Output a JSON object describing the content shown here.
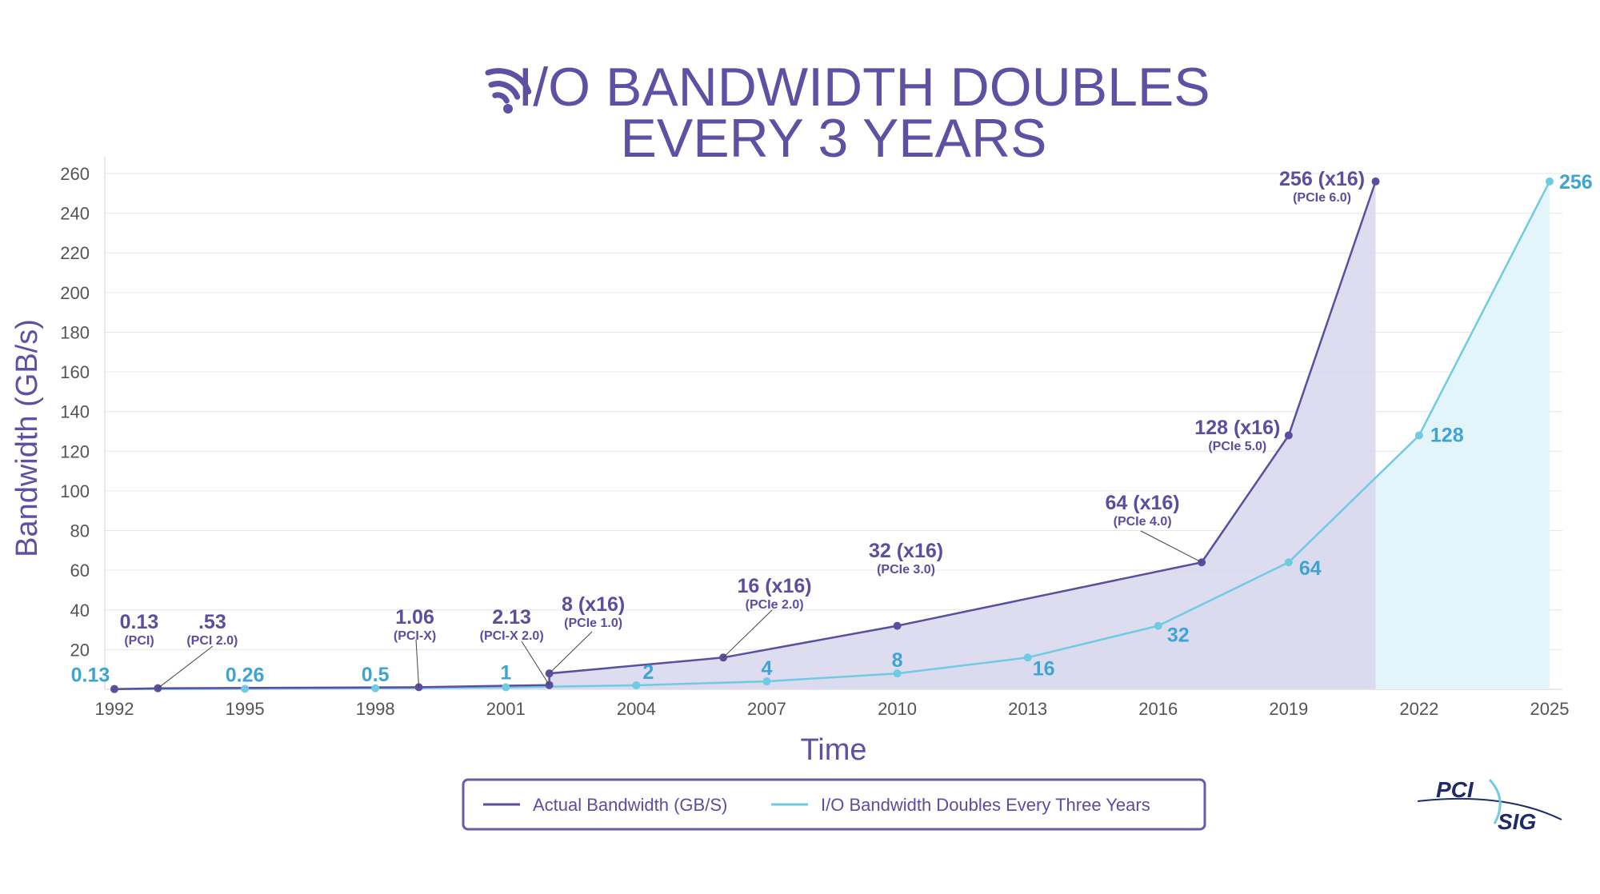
{
  "title": {
    "line1": "I/O BANDWIDTH DOUBLES",
    "line2": "EVERY 3 YEARS"
  },
  "title_icon": "wifi-signal-icon",
  "logo": {
    "line1": "PCI",
    "line2": "SIG"
  },
  "colors": {
    "actual": "#5a4e9e",
    "projected": "#6fcbe2",
    "projected_label": "#3fa3d4",
    "title": "#5c51a3"
  },
  "chart_data": {
    "type": "line",
    "title": "I/O BANDWIDTH DOUBLES EVERY 3 YEARS",
    "xlabel": "Time",
    "ylabel": "Bandwidth (GB/s)",
    "xlim": [
      1992,
      2025
    ],
    "ylim": [
      0,
      260
    ],
    "x_ticks": [
      1992,
      1995,
      1998,
      2001,
      2004,
      2007,
      2010,
      2013,
      2016,
      2019,
      2022,
      2025
    ],
    "y_ticks": [
      20,
      40,
      60,
      80,
      100,
      120,
      140,
      160,
      180,
      200,
      220,
      240,
      260
    ],
    "grid": true,
    "legend_position": "bottom-center",
    "series": [
      {
        "name": "Actual Bandwidth (GB/S)",
        "color": "#5a4e9e",
        "points": [
          {
            "x": 1992,
            "y": 0.13,
            "label": "0.13",
            "sub": "(PCI)"
          },
          {
            "x": 1993,
            "y": 0.53,
            "label": ".53",
            "sub": "(PCI 2.0)"
          },
          {
            "x": 1999,
            "y": 1.06,
            "label": "1.06",
            "sub": "(PCI-X)"
          },
          {
            "x": 2002,
            "y": 2.13,
            "label": "2.13",
            "sub": "(PCI-X 2.0)"
          },
          {
            "x": 2002,
            "y": 8,
            "label": "8 (x16)",
            "sub": "(PCIe 1.0)"
          },
          {
            "x": 2006,
            "y": 16,
            "label": "16 (x16)",
            "sub": "(PCIe 2.0)"
          },
          {
            "x": 2010,
            "y": 32,
            "label": "32 (x16)",
            "sub": "(PCIe 3.0)"
          },
          {
            "x": 2017,
            "y": 64,
            "label": "64 (x16)",
            "sub": "(PCIe 4.0)"
          },
          {
            "x": 2019,
            "y": 128,
            "label": "128 (x16)",
            "sub": "(PCIe 5.0)"
          },
          {
            "x": 2021,
            "y": 256,
            "label": "256 (x16)",
            "sub": "(PCIe 6.0)"
          }
        ]
      },
      {
        "name": "I/O Bandwidth Doubles Every Three Years",
        "color": "#6fcbe2",
        "points": [
          {
            "x": 1992,
            "y": 0.13,
            "label": "0.13"
          },
          {
            "x": 1995,
            "y": 0.26,
            "label": "0.26"
          },
          {
            "x": 1998,
            "y": 0.5,
            "label": "0.5"
          },
          {
            "x": 2001,
            "y": 1,
            "label": "1"
          },
          {
            "x": 2004,
            "y": 2,
            "label": "2"
          },
          {
            "x": 2007,
            "y": 4,
            "label": "4"
          },
          {
            "x": 2010,
            "y": 8,
            "label": "8"
          },
          {
            "x": 2013,
            "y": 16,
            "label": "16"
          },
          {
            "x": 2016,
            "y": 32,
            "label": "32"
          },
          {
            "x": 2019,
            "y": 64,
            "label": "64"
          },
          {
            "x": 2022,
            "y": 128,
            "label": "128"
          },
          {
            "x": 2025,
            "y": 256,
            "label": "256"
          }
        ]
      }
    ]
  }
}
